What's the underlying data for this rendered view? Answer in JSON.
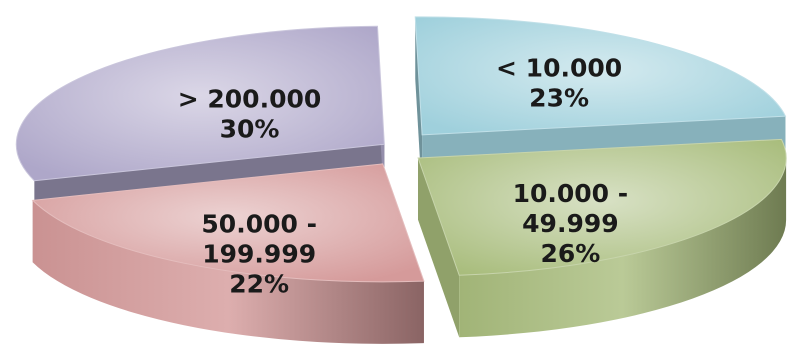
{
  "chart_data": {
    "type": "pie",
    "style": "3d-exploded",
    "title": "",
    "slices": [
      {
        "name": "> 200.000",
        "label_lines": [
          "> 200.000",
          "30%"
        ],
        "value": 30,
        "percent": "30%",
        "color": "#aea7c9"
      },
      {
        "name": "< 10.000",
        "label_lines": [
          "< 10.000",
          "23%"
        ],
        "value": 23,
        "percent": "23%",
        "color": "#9fd0dc"
      },
      {
        "name": "10.000 - 49.999",
        "label_lines": [
          "10.000 -",
          "49.999",
          "26%"
        ],
        "value": 26,
        "percent": "26%",
        "color": "#a9bd7d"
      },
      {
        "name": "50.000 - 199.999",
        "label_lines": [
          "50.000 -",
          "199.999",
          "22%"
        ],
        "value": 22,
        "percent": "22%",
        "color": "#d59a9a"
      }
    ]
  }
}
